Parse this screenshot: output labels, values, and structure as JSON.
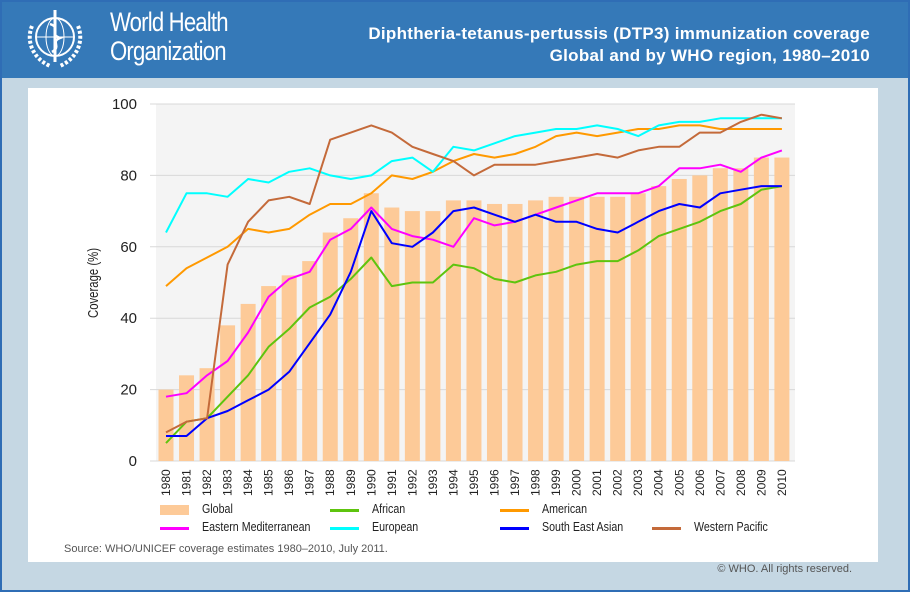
{
  "header": {
    "org_line1": "World Health",
    "org_line2": "Organization",
    "title_line1": "Diphtheria-tetanus-pertussis (DTP3) immunization coverage",
    "title_line2": "Global and by WHO region, 1980–2010"
  },
  "footer": {
    "source": "Source: WHO/UNICEF coverage estimates 1980–2010, July 2011.",
    "copyright": "© WHO. All rights reserved."
  },
  "chart_data": {
    "type": "bar+line",
    "ylabel": "Coverage (%)",
    "ylim": [
      0,
      100
    ],
    "yticks": [
      "0",
      "20",
      "40",
      "60",
      "80",
      "100"
    ],
    "grid": true,
    "legend_placement": "bottom",
    "categories": [
      "1980",
      "1981",
      "1982",
      "1983",
      "1984",
      "1985",
      "1986",
      "1987",
      "1988",
      "1989",
      "1990",
      "1991",
      "1992",
      "1993",
      "1994",
      "1995",
      "1996",
      "1997",
      "1998",
      "1999",
      "2000",
      "2001",
      "2002",
      "2003",
      "2004",
      "2005",
      "2006",
      "2007",
      "2008",
      "2009",
      "2010"
    ],
    "bars": {
      "name": "Global",
      "color": "#fdca98",
      "values": [
        20,
        24,
        26,
        38,
        44,
        49,
        52,
        56,
        64,
        68,
        75,
        71,
        70,
        70,
        73,
        73,
        72,
        72,
        73,
        74,
        74,
        74,
        74,
        75,
        77,
        79,
        80,
        82,
        82,
        85,
        85
      ]
    },
    "series": [
      {
        "name": "African",
        "color": "#5ec40e",
        "values": [
          5,
          11,
          12,
          18,
          24,
          32,
          37,
          43,
          46,
          51,
          57,
          49,
          50,
          50,
          55,
          54,
          51,
          50,
          52,
          53,
          55,
          56,
          56,
          59,
          63,
          65,
          67,
          70,
          72,
          76,
          77
        ]
      },
      {
        "name": "American",
        "color": "#ff9900",
        "values": [
          49,
          54,
          57,
          60,
          65,
          64,
          65,
          69,
          72,
          72,
          75,
          80,
          79,
          81,
          84,
          86,
          85,
          86,
          88,
          91,
          92,
          91,
          92,
          93,
          93,
          94,
          94,
          93,
          93,
          93,
          93
        ]
      },
      {
        "name": "Eastern Mediterranean",
        "color": "#ff00ff",
        "values": [
          18,
          19,
          24,
          28,
          36,
          46,
          51,
          53,
          62,
          65,
          71,
          65,
          63,
          62,
          60,
          68,
          66,
          67,
          69,
          71,
          73,
          75,
          75,
          75,
          77,
          82,
          82,
          83,
          81,
          85,
          87
        ]
      },
      {
        "name": "European",
        "color": "#00ffff",
        "values": [
          64,
          75,
          75,
          74,
          79,
          78,
          81,
          82,
          80,
          79,
          80,
          84,
          85,
          81,
          88,
          87,
          89,
          91,
          92,
          93,
          93,
          94,
          93,
          91,
          94,
          95,
          95,
          96,
          96,
          96,
          96
        ]
      },
      {
        "name": "South East Asian",
        "color": "#0000ff",
        "values": [
          7,
          7,
          12,
          14,
          17,
          20,
          25,
          33,
          41,
          53,
          70,
          61,
          60,
          64,
          70,
          71,
          69,
          67,
          69,
          67,
          67,
          65,
          64,
          67,
          70,
          72,
          71,
          75,
          76,
          77,
          77
        ]
      },
      {
        "name": "Western Pacific",
        "color": "#c46a3a",
        "values": [
          8,
          11,
          12,
          55,
          67,
          73,
          74,
          72,
          90,
          92,
          94,
          92,
          88,
          86,
          84,
          80,
          83,
          83,
          83,
          84,
          85,
          86,
          85,
          87,
          88,
          88,
          92,
          92,
          95,
          97,
          96
        ]
      }
    ]
  }
}
